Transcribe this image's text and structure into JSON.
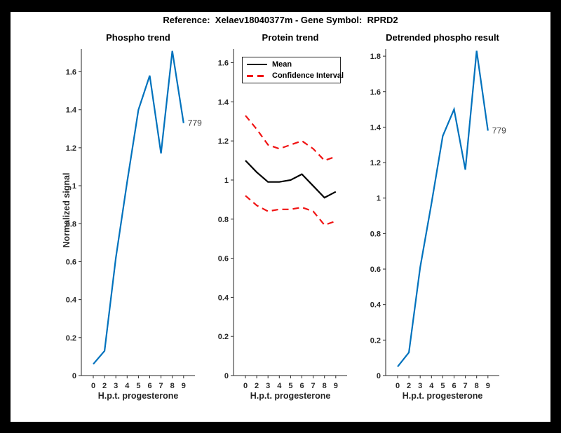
{
  "figure": {
    "title": "Reference:  Xelaev18040377m - Gene Symbol:  RPRD2",
    "background_color": "#000000",
    "canvas_color": "#ffffff",
    "axis_color": "#262626",
    "accent_blue": "#0072BD",
    "accent_red": "#f01414"
  },
  "chart_data": [
    {
      "type": "line",
      "title": "Phospho trend",
      "xlabel": "H.p.t. progesterone",
      "ylabel": "Normalized signal",
      "x_ticks": [
        "0",
        "2",
        "3",
        "4",
        "5",
        "6",
        "7",
        "8",
        "9"
      ],
      "y_ticks": [
        0,
        0.2,
        0.4,
        0.6,
        0.8,
        1,
        1.2,
        1.4,
        1.6
      ],
      "y_tick_labels": [
        "0",
        "0.2",
        "0.4",
        "0.6",
        "0.8",
        "1",
        "1.2",
        "1.4",
        "1.6"
      ],
      "ylim": [
        0,
        1.72
      ],
      "grid": false,
      "series": [
        {
          "name": "phospho-line",
          "color": "#0072BD",
          "style": "solid",
          "values": [
            0.06,
            0.13,
            0.62,
            1.02,
            1.4,
            1.58,
            1.17,
            1.71,
            1.33
          ]
        }
      ],
      "annotation": {
        "text": "779",
        "index": 8,
        "value": 1.33
      }
    },
    {
      "type": "line",
      "title": "Protein trend",
      "xlabel": "H.p.t. progesterone",
      "ylabel": "",
      "x_ticks": [
        "0",
        "2",
        "3",
        "4",
        "5",
        "6",
        "7",
        "8",
        "9"
      ],
      "y_ticks": [
        0,
        0.2,
        0.4,
        0.6,
        0.8,
        1,
        1.2,
        1.4,
        1.6
      ],
      "y_tick_labels": [
        "0",
        "0.2",
        "0.4",
        "0.6",
        "0.8",
        "1",
        "1.2",
        "1.4",
        "1.6"
      ],
      "ylim": [
        0,
        1.67
      ],
      "grid": false,
      "series": [
        {
          "name": "mean-line",
          "color": "#000000",
          "style": "solid",
          "values": [
            1.1,
            1.04,
            0.99,
            0.99,
            1.0,
            1.03,
            0.97,
            0.91,
            0.94
          ]
        },
        {
          "name": "ci-upper-line",
          "color": "#f01414",
          "style": "dashed",
          "values": [
            1.33,
            1.26,
            1.18,
            1.16,
            1.18,
            1.2,
            1.16,
            1.1,
            1.12
          ]
        },
        {
          "name": "ci-lower-line",
          "color": "#f01414",
          "style": "dashed",
          "values": [
            0.92,
            0.87,
            0.84,
            0.85,
            0.85,
            0.86,
            0.84,
            0.77,
            0.79
          ]
        }
      ],
      "legend": {
        "position": "northwest",
        "entries": [
          {
            "label": "Mean",
            "style": "solid",
            "color": "#000000"
          },
          {
            "label": "Confidence Interval",
            "style": "dashed",
            "color": "#f01414"
          }
        ]
      }
    },
    {
      "type": "line",
      "title": "Detrended phospho result",
      "xlabel": "H.p.t. progesterone",
      "ylabel": "",
      "x_ticks": [
        "0",
        "2",
        "3",
        "4",
        "5",
        "6",
        "7",
        "8",
        "9"
      ],
      "y_ticks": [
        0,
        0.2,
        0.4,
        0.6,
        0.8,
        1,
        1.2,
        1.4,
        1.6,
        1.8
      ],
      "y_tick_labels": [
        "0",
        "0.2",
        "0.4",
        "0.6",
        "0.8",
        "1",
        "1.2",
        "1.4",
        "1.6",
        "1.8"
      ],
      "ylim": [
        0,
        1.84
      ],
      "grid": false,
      "series": [
        {
          "name": "detrended-line",
          "color": "#0072BD",
          "style": "solid",
          "values": [
            0.05,
            0.13,
            0.61,
            0.97,
            1.35,
            1.5,
            1.16,
            1.83,
            1.38
          ]
        }
      ],
      "annotation": {
        "text": "779",
        "index": 8,
        "value": 1.38
      }
    }
  ]
}
